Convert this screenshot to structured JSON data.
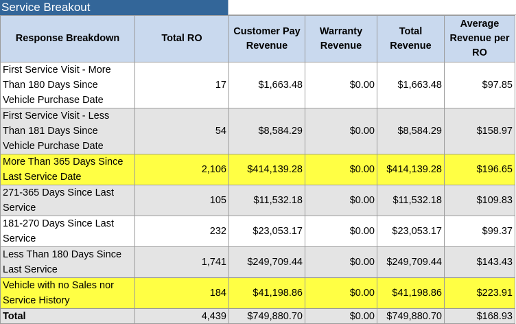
{
  "title": "Service Breakout",
  "headers": {
    "response": "Response Breakdown",
    "total_ro": "Total RO",
    "customer_pay": "Customer Pay Revenue",
    "warranty": "Warranty Revenue",
    "total_revenue": "Total Revenue",
    "avg_revenue": "Average Revenue per RO"
  },
  "rows": [
    {
      "label": "First Service Visit - More Than 180 Days Since Vehicle Purchase Date",
      "total_ro": "17",
      "customer_pay": "$1,663.48",
      "warranty": "$0.00",
      "total_revenue": "$1,663.48",
      "avg": "$97.85",
      "highlight": "white"
    },
    {
      "label": "First Service Visit - Less Than 181 Days Since Vehicle Purchase Date",
      "total_ro": "54",
      "customer_pay": "$8,584.29",
      "warranty": "$0.00",
      "total_revenue": "$8,584.29",
      "avg": "$158.97",
      "highlight": "gray"
    },
    {
      "label": "More Than 365 Days Since Last Service Date",
      "total_ro": "2,106",
      "customer_pay": "$414,139.28",
      "warranty": "$0.00",
      "total_revenue": "$414,139.28",
      "avg": "$196.65",
      "highlight": "yellow"
    },
    {
      "label": "271-365 Days Since Last Service",
      "total_ro": "105",
      "customer_pay": "$11,532.18",
      "warranty": "$0.00",
      "total_revenue": "$11,532.18",
      "avg": "$109.83",
      "highlight": "gray"
    },
    {
      "label": "181-270 Days Since Last Service",
      "total_ro": "232",
      "customer_pay": "$23,053.17",
      "warranty": "$0.00",
      "total_revenue": "$23,053.17",
      "avg": "$99.37",
      "highlight": "white"
    },
    {
      "label": "Less Than 180 Days Since Last Service",
      "total_ro": "1,741",
      "customer_pay": "$249,709.44",
      "warranty": "$0.00",
      "total_revenue": "$249,709.44",
      "avg": "$143.43",
      "highlight": "gray"
    },
    {
      "label": "Vehicle with no Sales nor Service History",
      "total_ro": "184",
      "customer_pay": "$41,198.86",
      "warranty": "$0.00",
      "total_revenue": "$41,198.86",
      "avg": "$223.91",
      "highlight": "yellow"
    }
  ],
  "total": {
    "label": "Total",
    "total_ro": "4,439",
    "customer_pay": "$749,880.70",
    "warranty": "$0.00",
    "total_revenue": "$749,880.70",
    "avg": "$168.93"
  },
  "colors": {
    "title_bg": "#336699",
    "header_bg": "#c9d9ee",
    "gray_row": "#e4e4e4",
    "yellow_row": "#ffff44"
  }
}
